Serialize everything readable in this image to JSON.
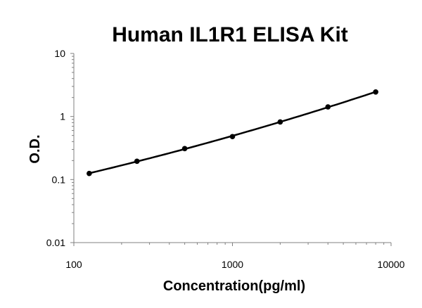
{
  "chart_data": {
    "type": "scatter",
    "title": "Human IL1R1 ELISA Kit",
    "xlabel": "Concentration(pg/ml)",
    "ylabel": "O.D.",
    "x_scale": "log",
    "y_scale": "log",
    "xlim": [
      100,
      10000
    ],
    "ylim": [
      0.01,
      10
    ],
    "grid": false,
    "x_ticks": [
      {
        "value": 100,
        "label": "100"
      },
      {
        "value": 1000,
        "label": "1000"
      },
      {
        "value": 10000,
        "label": "10000"
      }
    ],
    "y_ticks": [
      {
        "value": 0.01,
        "label": "0.01"
      },
      {
        "value": 0.1,
        "label": "0.1"
      },
      {
        "value": 1,
        "label": "1"
      },
      {
        "value": 10,
        "label": "10"
      }
    ],
    "series": [
      {
        "x": [
          125,
          250,
          500,
          1000,
          2000,
          4000,
          8000
        ],
        "y": [
          0.125,
          0.195,
          0.31,
          0.48,
          0.82,
          1.42,
          2.45
        ],
        "fit": "smooth-curve"
      }
    ],
    "colors": {
      "points": "#000000",
      "line": "#000000",
      "axis": "#808080"
    }
  }
}
